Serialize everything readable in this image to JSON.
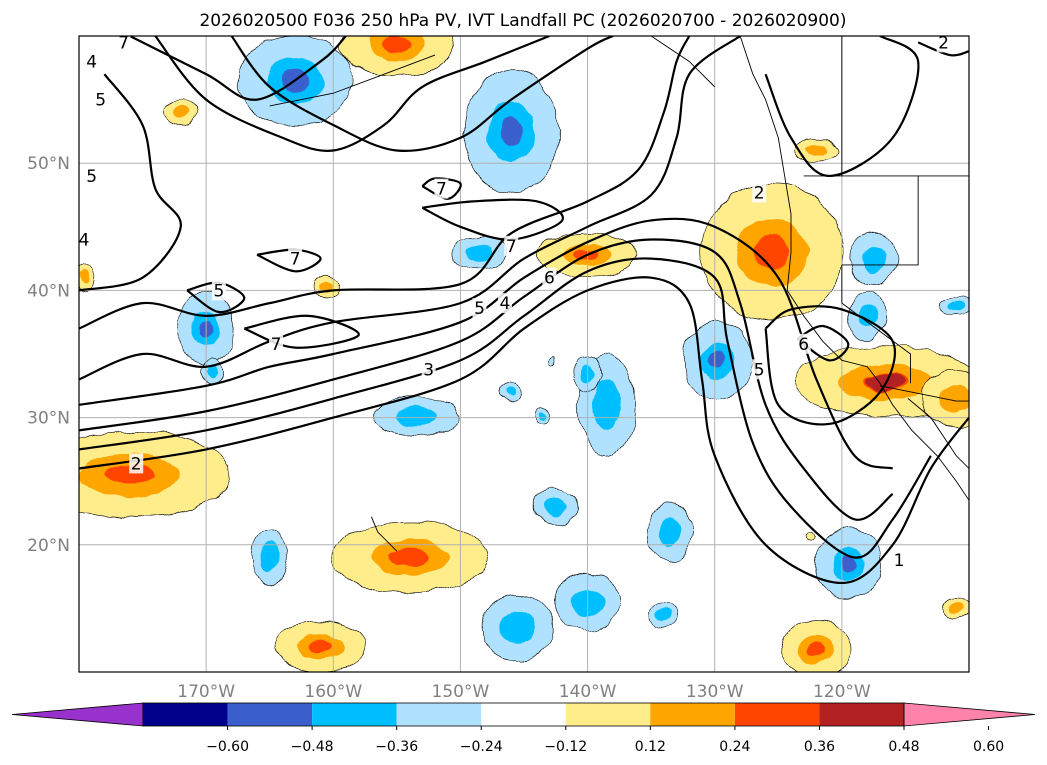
{
  "chart_data": {
    "type": "heatmap",
    "title": "2026020500 F036 250 hPa PV, IVT Landfall PC (2026020700 - 2026020900)",
    "map": {
      "lon_range": [
        -180,
        -110
      ],
      "lat_range": [
        10,
        60
      ],
      "x_ticks": [
        {
          "value": -170,
          "label": "170°W"
        },
        {
          "value": -160,
          "label": "160°W"
        },
        {
          "value": -150,
          "label": "150°W"
        },
        {
          "value": -140,
          "label": "140°W"
        },
        {
          "value": -130,
          "label": "130°W"
        },
        {
          "value": -120,
          "label": "120°W"
        }
      ],
      "y_ticks": [
        {
          "value": 20,
          "label": "20°N"
        },
        {
          "value": 30,
          "label": "30°N"
        },
        {
          "value": 40,
          "label": "40°N"
        },
        {
          "value": 50,
          "label": "50°N"
        }
      ],
      "grid": true
    },
    "colorbar": {
      "levels": [
        "-0.60",
        "-0.48",
        "-0.36",
        "-0.24",
        "-0.12",
        "0.12",
        "0.24",
        "0.36",
        "0.48",
        "0.60"
      ],
      "colors": [
        "#9932cc",
        "#00008b",
        "#3a5fcd",
        "#00bfff",
        "#b0e2ff",
        "#ffffff",
        "#ffec8b",
        "#ffa500",
        "#ff4500",
        "#b22222",
        "#ff82ab"
      ],
      "extend": "both"
    },
    "pv_contour_labels": [
      {
        "text": "7",
        "lon": -176.5,
        "lat": 59.5
      },
      {
        "text": "4",
        "lon": -179.0,
        "lat": 58.0
      },
      {
        "text": "5",
        "lon": -178.3,
        "lat": 55.0
      },
      {
        "text": "5",
        "lon": -179.0,
        "lat": 49.0
      },
      {
        "text": "4",
        "lon": -179.6,
        "lat": 44.0
      },
      {
        "text": "7",
        "lon": -151.5,
        "lat": 48.0
      },
      {
        "text": "7",
        "lon": -146.0,
        "lat": 43.5
      },
      {
        "text": "7",
        "lon": -163.0,
        "lat": 42.5
      },
      {
        "text": "6",
        "lon": -143.0,
        "lat": 41.0
      },
      {
        "text": "5",
        "lon": -148.5,
        "lat": 38.6
      },
      {
        "text": "4",
        "lon": -146.5,
        "lat": 39.0
      },
      {
        "text": "3",
        "lon": -152.5,
        "lat": 33.8
      },
      {
        "text": "5",
        "lon": -169.0,
        "lat": 40.0
      },
      {
        "text": "7",
        "lon": -164.5,
        "lat": 35.8
      },
      {
        "text": "2",
        "lon": -175.5,
        "lat": 26.4
      },
      {
        "text": "6",
        "lon": -123.0,
        "lat": 35.8
      },
      {
        "text": "5",
        "lon": -126.5,
        "lat": 33.8
      },
      {
        "text": "2",
        "lon": -126.5,
        "lat": 47.7
      },
      {
        "text": "2",
        "lon": -112.0,
        "lat": 59.5
      },
      {
        "text": "1",
        "lon": -115.5,
        "lat": 18.8
      }
    ],
    "pv_contour_lines": [
      [
        [
          -180,
          26
        ],
        [
          -170,
          27.5
        ],
        [
          -160,
          30
        ],
        [
          -150,
          33
        ],
        [
          -145,
          37
        ],
        [
          -140,
          40
        ],
        [
          -135,
          41
        ],
        [
          -132,
          39
        ],
        [
          -131,
          33
        ],
        [
          -130,
          27
        ],
        [
          -126,
          20
        ],
        [
          -120,
          17
        ],
        [
          -116,
          20
        ],
        [
          -113,
          26
        ],
        [
          -110,
          30
        ]
      ],
      [
        [
          -180,
          27.5
        ],
        [
          -170,
          29
        ],
        [
          -160,
          31.5
        ],
        [
          -150,
          34.5
        ],
        [
          -145,
          38
        ],
        [
          -140,
          41.5
        ],
        [
          -135,
          42.5
        ],
        [
          -130,
          41
        ],
        [
          -129,
          36
        ],
        [
          -127,
          28
        ],
        [
          -124,
          23
        ],
        [
          -119,
          19
        ],
        [
          -116,
          22
        ],
        [
          -113,
          27
        ]
      ],
      [
        [
          -180,
          29
        ],
        [
          -170,
          30.5
        ],
        [
          -160,
          33
        ],
        [
          -150,
          36
        ],
        [
          -145,
          39.5
        ],
        [
          -140,
          42.8
        ],
        [
          -135,
          44
        ],
        [
          -130,
          43
        ],
        [
          -128,
          39
        ],
        [
          -126,
          31
        ],
        [
          -123,
          26
        ],
        [
          -119,
          22
        ],
        [
          -116,
          24
        ]
      ],
      [
        [
          -180,
          31
        ],
        [
          -170,
          32.5
        ],
        [
          -165,
          34
        ],
        [
          -160,
          35
        ],
        [
          -150,
          37.5
        ],
        [
          -145,
          41
        ],
        [
          -140,
          43.8
        ],
        [
          -135,
          45.5
        ],
        [
          -130,
          45
        ],
        [
          -125,
          41
        ],
        [
          -122,
          33
        ],
        [
          -119,
          27
        ],
        [
          -116,
          26
        ]
      ],
      [
        [
          -180,
          33
        ],
        [
          -175,
          35
        ],
        [
          -170,
          34
        ],
        [
          -165,
          36
        ],
        [
          -160,
          37.5
        ],
        [
          -150,
          39
        ],
        [
          -145,
          42.5
        ],
        [
          -140,
          45
        ],
        [
          -135,
          47.5
        ],
        [
          -133,
          52
        ],
        [
          -132,
          57
        ],
        [
          -128,
          60
        ]
      ],
      [
        [
          -180,
          37
        ],
        [
          -175,
          39
        ],
        [
          -170,
          38
        ],
        [
          -165,
          39
        ],
        [
          -160,
          40
        ],
        [
          -150,
          40.5
        ],
        [
          -146,
          44.5
        ],
        [
          -140,
          47
        ],
        [
          -136,
          49.5
        ],
        [
          -134,
          54
        ],
        [
          -133,
          58
        ],
        [
          -132,
          60
        ]
      ],
      [
        [
          -174,
          60
        ],
        [
          -170,
          55
        ],
        [
          -164,
          52
        ],
        [
          -160,
          51
        ],
        [
          -156,
          53
        ],
        [
          -153,
          56
        ],
        [
          -148,
          58
        ],
        [
          -143,
          60
        ]
      ],
      [
        [
          -168,
          60
        ],
        [
          -165,
          56
        ],
        [
          -160,
          53
        ],
        [
          -155,
          51
        ],
        [
          -150,
          52
        ],
        [
          -146,
          55
        ],
        [
          -140,
          59
        ],
        [
          -138,
          60
        ]
      ],
      [
        [
          -178,
          57
        ],
        [
          -175,
          53
        ],
        [
          -174,
          48
        ],
        [
          -172,
          45
        ],
        [
          -175,
          41
        ],
        [
          -180,
          40
        ]
      ],
      [
        [
          -176,
          60
        ],
        [
          -170,
          57
        ],
        [
          -166,
          55
        ],
        [
          -161,
          58
        ],
        [
          -159,
          60
        ]
      ],
      [
        [
          -166,
          42.8
        ],
        [
          -163,
          41.5
        ],
        [
          -161,
          42.5
        ],
        [
          -163,
          43.2
        ],
        [
          -166,
          42.8
        ]
      ],
      [
        [
          -167,
          37
        ],
        [
          -163,
          35.5
        ],
        [
          -158,
          36.5
        ],
        [
          -162,
          38
        ],
        [
          -167,
          37
        ]
      ],
      [
        [
          -153,
          46.5
        ],
        [
          -150,
          45
        ],
        [
          -146,
          44
        ],
        [
          -142,
          45.5
        ],
        [
          -144,
          47
        ],
        [
          -149,
          47
        ],
        [
          -153,
          46.5
        ]
      ],
      [
        [
          -153,
          48.2
        ],
        [
          -151,
          47.2
        ],
        [
          -150,
          48.4
        ],
        [
          -152,
          48.8
        ],
        [
          -153,
          48.2
        ]
      ],
      [
        [
          -171.5,
          40
        ],
        [
          -169,
          38.3
        ],
        [
          -167,
          39.4
        ],
        [
          -169,
          40.6
        ],
        [
          -171.5,
          40
        ]
      ],
      [
        [
          -123.5,
          36.2
        ],
        [
          -121,
          34.5
        ],
        [
          -119.5,
          35.8
        ],
        [
          -121.5,
          37.2
        ],
        [
          -123.5,
          36.2
        ]
      ],
      [
        [
          -126,
          37
        ],
        [
          -125,
          31
        ],
        [
          -121,
          29.5
        ],
        [
          -117,
          32
        ],
        [
          -116,
          36
        ],
        [
          -120,
          38.5
        ],
        [
          -124,
          38.5
        ],
        [
          -126,
          37
        ]
      ],
      [
        [
          -126,
          57
        ],
        [
          -124,
          52
        ],
        [
          -121,
          49
        ],
        [
          -116,
          52
        ],
        [
          -114,
          58
        ],
        [
          -117,
          60
        ]
      ],
      [
        [
          -114,
          59.5
        ],
        [
          -111.5,
          58.5
        ],
        [
          -110,
          58.8
        ]
      ]
    ],
    "pv_anomaly_regions": [
      {
        "lon": -176.0,
        "lat": 25.5,
        "rx": 7.0,
        "ry": 3.0,
        "value": 0.48
      },
      {
        "lon": -179.5,
        "lat": 41.0,
        "rx": 0.6,
        "ry": 1.0,
        "value": 0.36
      },
      {
        "lon": -172.0,
        "lat": 54.0,
        "rx": 1.2,
        "ry": 0.9,
        "value": 0.36
      },
      {
        "lon": -163.0,
        "lat": 56.5,
        "rx": 4.0,
        "ry": 3.2,
        "value": -0.48
      },
      {
        "lon": -155.0,
        "lat": 59.3,
        "rx": 4.0,
        "ry": 2.2,
        "value": 0.48
      },
      {
        "lon": -146.0,
        "lat": 52.5,
        "rx": 3.3,
        "ry": 4.3,
        "value": -0.48
      },
      {
        "lon": -148.5,
        "lat": 43.0,
        "rx": 1.9,
        "ry": 1.2,
        "value": -0.36
      },
      {
        "lon": -170.0,
        "lat": 37.0,
        "rx": 2.0,
        "ry": 2.5,
        "value": -0.48
      },
      {
        "lon": -169.5,
        "lat": 33.6,
        "rx": 0.8,
        "ry": 0.9,
        "value": -0.36
      },
      {
        "lon": -160.5,
        "lat": 40.3,
        "rx": 0.8,
        "ry": 0.8,
        "value": 0.36
      },
      {
        "lon": -140.0,
        "lat": 42.8,
        "rx": 3.5,
        "ry": 1.5,
        "value": 0.48
      },
      {
        "lon": -153.5,
        "lat": 30.1,
        "rx": 3.0,
        "ry": 1.4,
        "value": -0.36
      },
      {
        "lon": -146.0,
        "lat": 32.0,
        "rx": 0.8,
        "ry": 0.6,
        "value": -0.36
      },
      {
        "lon": -143.5,
        "lat": 30.2,
        "rx": 0.5,
        "ry": 0.5,
        "value": -0.36
      },
      {
        "lon": -138.5,
        "lat": 31.0,
        "rx": 2.0,
        "ry": 3.5,
        "value": -0.36
      },
      {
        "lon": -140.0,
        "lat": 33.5,
        "rx": 1.0,
        "ry": 1.2,
        "value": -0.36
      },
      {
        "lon": -129.8,
        "lat": 34.5,
        "rx": 2.4,
        "ry": 2.7,
        "value": -0.48
      },
      {
        "lon": -125.5,
        "lat": 43.0,
        "rx": 5.0,
        "ry": 4.8,
        "value": 0.48
      },
      {
        "lon": -122.0,
        "lat": 51.0,
        "rx": 1.6,
        "ry": 0.8,
        "value": 0.36
      },
      {
        "lon": -117.5,
        "lat": 42.5,
        "rx": 1.6,
        "ry": 1.9,
        "value": -0.36
      },
      {
        "lon": -118.0,
        "lat": 38.0,
        "rx": 1.3,
        "ry": 1.7,
        "value": -0.36
      },
      {
        "lon": -111.0,
        "lat": 38.8,
        "rx": 1.2,
        "ry": 0.6,
        "value": -0.36
      },
      {
        "lon": -116.5,
        "lat": 32.8,
        "rx": 6.5,
        "ry": 2.5,
        "value": 0.6
      },
      {
        "lon": -111.0,
        "lat": 31.5,
        "rx": 2.5,
        "ry": 2.0,
        "value": 0.36
      },
      {
        "lon": -142.5,
        "lat": 23.0,
        "rx": 1.6,
        "ry": 1.3,
        "value": -0.36
      },
      {
        "lon": -133.5,
        "lat": 21.0,
        "rx": 1.6,
        "ry": 2.0,
        "value": -0.36
      },
      {
        "lon": -119.5,
        "lat": 18.5,
        "rx": 2.3,
        "ry": 2.5,
        "value": -0.48
      },
      {
        "lon": -154.0,
        "lat": 19.0,
        "rx": 5.5,
        "ry": 2.5,
        "value": 0.48
      },
      {
        "lon": -165.0,
        "lat": 19.0,
        "rx": 1.2,
        "ry": 2.0,
        "value": -0.36
      },
      {
        "lon": -140.0,
        "lat": 15.5,
        "rx": 2.3,
        "ry": 2.0,
        "value": -0.36
      },
      {
        "lon": -145.5,
        "lat": 13.5,
        "rx": 2.5,
        "ry": 2.3,
        "value": -0.36
      },
      {
        "lon": -134.0,
        "lat": 14.5,
        "rx": 0.9,
        "ry": 0.8,
        "value": -0.36
      },
      {
        "lon": -161.0,
        "lat": 12.0,
        "rx": 3.2,
        "ry": 1.8,
        "value": 0.48
      },
      {
        "lon": -122.0,
        "lat": 11.8,
        "rx": 2.5,
        "ry": 2.0,
        "value": 0.48
      },
      {
        "lon": -111.0,
        "lat": 15.0,
        "rx": 0.9,
        "ry": 0.7,
        "value": 0.36
      },
      {
        "lon": -122.5,
        "lat": 20.7,
        "rx": 0.3,
        "ry": 0.3,
        "value": 0.24
      },
      {
        "lon": -142.7,
        "lat": 34.5,
        "rx": 0.2,
        "ry": 0.3,
        "value": -0.24
      }
    ]
  }
}
